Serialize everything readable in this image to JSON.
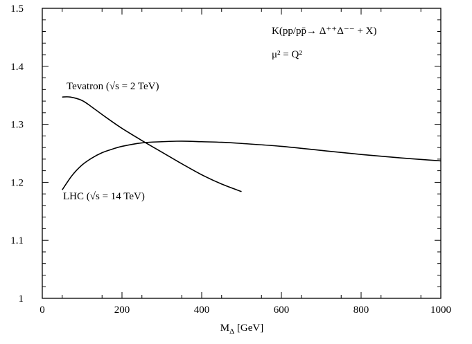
{
  "chart_data": {
    "type": "line",
    "title": "",
    "xlabel_main": "M",
    "xlabel_sub": "Δ",
    "xlabel_unit": " [GeV]",
    "ylabel": "",
    "xlim": [
      0,
      1000
    ],
    "ylim": [
      1.0,
      1.5
    ],
    "grid": false,
    "x_ticks": [
      0,
      200,
      400,
      600,
      800,
      1000
    ],
    "x_tick_labels": [
      "0",
      "200",
      "400",
      "600",
      "800",
      "1000"
    ],
    "y_ticks": [
      1.0,
      1.1,
      1.2,
      1.3,
      1.4,
      1.5
    ],
    "y_tick_labels": [
      "1",
      "1.1",
      "1.2",
      "1.3",
      "1.4",
      "1.5"
    ],
    "annotations": {
      "process": "K(pp/pp̄→ Δ⁺⁺Δ⁻⁻ + X)",
      "scale": "μ² = Q²"
    },
    "series": [
      {
        "name": "Tevatron (√s = 2 TeV)",
        "x": [
          50,
          70,
          100,
          130,
          160,
          200,
          250,
          300,
          350,
          400,
          450,
          500
        ],
        "y": [
          1.347,
          1.347,
          1.341,
          1.327,
          1.312,
          1.293,
          1.272,
          1.252,
          1.232,
          1.213,
          1.197,
          1.184
        ]
      },
      {
        "name": "LHC (√s = 14 TeV)",
        "x": [
          50,
          75,
          100,
          125,
          150,
          175,
          200,
          250,
          300,
          350,
          400,
          450,
          500,
          600,
          700,
          800,
          900,
          1000
        ],
        "y": [
          1.187,
          1.212,
          1.23,
          1.242,
          1.251,
          1.257,
          1.262,
          1.268,
          1.27,
          1.271,
          1.27,
          1.269,
          1.267,
          1.262,
          1.255,
          1.248,
          1.242,
          1.237
        ]
      }
    ]
  }
}
